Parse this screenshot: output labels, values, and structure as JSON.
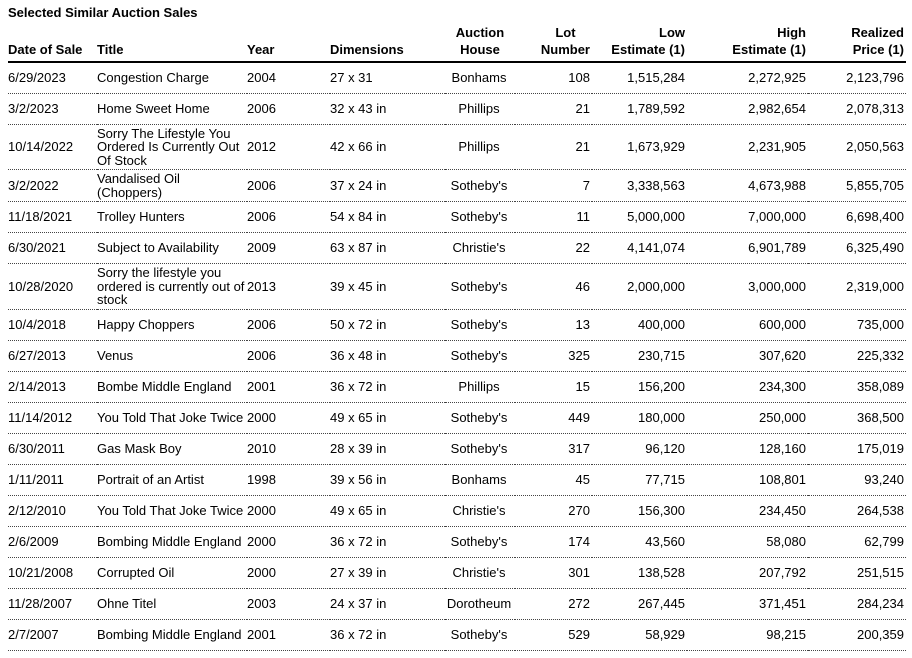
{
  "document": {
    "title": "Selected Similar Auction Sales"
  },
  "table": {
    "columns": [
      {
        "id": "date_of_sale",
        "label": "Date of Sale"
      },
      {
        "id": "title",
        "label": "Title"
      },
      {
        "id": "year",
        "label": "Year"
      },
      {
        "id": "dimensions",
        "label": "Dimensions"
      },
      {
        "id": "auction_house",
        "label": "Auction\nHouse"
      },
      {
        "id": "lot_number",
        "label": "Lot\nNumber"
      },
      {
        "id": "low_estimate",
        "label": "Low\nEstimate (1)"
      },
      {
        "id": "high_estimate",
        "label": "High\nEstimate (1)"
      },
      {
        "id": "realized_price",
        "label": "Realized\nPrice (1)"
      }
    ],
    "rows": [
      {
        "date_of_sale": "6/29/2023",
        "title": "Congestion Charge",
        "year": "2004",
        "dimensions": "27 x 31",
        "auction_house": "Bonhams",
        "lot_number": "108",
        "low_estimate": "1,515,284",
        "high_estimate": "2,272,925",
        "realized_price": "2,123,796"
      },
      {
        "date_of_sale": "3/2/2023",
        "title": "Home Sweet Home",
        "year": "2006",
        "dimensions": "32 x 43 in",
        "auction_house": "Phillips",
        "lot_number": "21",
        "low_estimate": "1,789,592",
        "high_estimate": "2,982,654",
        "realized_price": "2,078,313"
      },
      {
        "date_of_sale": "10/14/2022",
        "title": "Sorry The Lifestyle You Ordered Is Currently Out Of Stock",
        "year": "2012",
        "dimensions": "42 x 66 in",
        "auction_house": "Phillips",
        "lot_number": "21",
        "low_estimate": "1,673,929",
        "high_estimate": "2,231,905",
        "realized_price": "2,050,563"
      },
      {
        "date_of_sale": "3/2/2022",
        "title": "Vandalised Oil (Choppers)",
        "year": "2006",
        "dimensions": "37 x 24 in",
        "auction_house": "Sotheby's",
        "lot_number": "7",
        "low_estimate": "3,338,563",
        "high_estimate": "4,673,988",
        "realized_price": "5,855,705"
      },
      {
        "date_of_sale": "11/18/2021",
        "title": "Trolley Hunters",
        "year": "2006",
        "dimensions": "54 x 84 in",
        "auction_house": "Sotheby's",
        "lot_number": "11",
        "low_estimate": "5,000,000",
        "high_estimate": "7,000,000",
        "realized_price": "6,698,400"
      },
      {
        "date_of_sale": "6/30/2021",
        "title": "Subject to Availability",
        "year": "2009",
        "dimensions": "63 x 87 in",
        "auction_house": "Christie's",
        "lot_number": "22",
        "low_estimate": "4,141,074",
        "high_estimate": "6,901,789",
        "realized_price": "6,325,490"
      },
      {
        "date_of_sale": "10/28/2020",
        "title": "Sorry the lifestyle you ordered is currently out of stock",
        "year": "2013",
        "dimensions": "39 x 45 in",
        "auction_house": "Sotheby's",
        "lot_number": "46",
        "low_estimate": "2,000,000",
        "high_estimate": "3,000,000",
        "realized_price": "2,319,000"
      },
      {
        "date_of_sale": "10/4/2018",
        "title": "Happy Choppers",
        "year": "2006",
        "dimensions": "50 x 72 in",
        "auction_house": "Sotheby's",
        "lot_number": "13",
        "low_estimate": "400,000",
        "high_estimate": "600,000",
        "realized_price": "735,000"
      },
      {
        "date_of_sale": "6/27/2013",
        "title": "Venus",
        "year": "2006",
        "dimensions": "36 x 48 in",
        "auction_house": "Sotheby's",
        "lot_number": "325",
        "low_estimate": "230,715",
        "high_estimate": "307,620",
        "realized_price": "225,332"
      },
      {
        "date_of_sale": "2/14/2013",
        "title": "Bombe Middle England",
        "year": "2001",
        "dimensions": "36 x 72 in",
        "auction_house": "Phillips",
        "lot_number": "15",
        "low_estimate": "156,200",
        "high_estimate": "234,300",
        "realized_price": "358,089"
      },
      {
        "date_of_sale": "11/14/2012",
        "title": "You Told That Joke Twice",
        "year": "2000",
        "dimensions": "49 x 65 in",
        "auction_house": "Sotheby's",
        "lot_number": "449",
        "low_estimate": "180,000",
        "high_estimate": "250,000",
        "realized_price": "368,500"
      },
      {
        "date_of_sale": "6/30/2011",
        "title": "Gas Mask Boy",
        "year": "2010",
        "dimensions": "28 x 39 in",
        "auction_house": "Sotheby's",
        "lot_number": "317",
        "low_estimate": "96,120",
        "high_estimate": "128,160",
        "realized_price": "175,019"
      },
      {
        "date_of_sale": "1/11/2011",
        "title": "Portrait of an Artist",
        "year": "1998",
        "dimensions": "39 x 56 in",
        "auction_house": "Bonhams",
        "lot_number": "45",
        "low_estimate": "77,715",
        "high_estimate": "108,801",
        "realized_price": "93,240"
      },
      {
        "date_of_sale": "2/12/2010",
        "title": "You Told That Joke Twice",
        "year": "2000",
        "dimensions": "49 x 65 in",
        "auction_house": "Christie's",
        "lot_number": "270",
        "low_estimate": "156,300",
        "high_estimate": "234,450",
        "realized_price": "264,538"
      },
      {
        "date_of_sale": "2/6/2009",
        "title": "Bombing Middle England",
        "year": "2000",
        "dimensions": "36 x 72 in",
        "auction_house": "Sotheby's",
        "lot_number": "174",
        "low_estimate": "43,560",
        "high_estimate": "58,080",
        "realized_price": "62,799"
      },
      {
        "date_of_sale": "10/21/2008",
        "title": "Corrupted Oil",
        "year": "2000",
        "dimensions": "27 x 39 in",
        "auction_house": "Christie's",
        "lot_number": "301",
        "low_estimate": "138,528",
        "high_estimate": "207,792",
        "realized_price": "251,515"
      },
      {
        "date_of_sale": "11/28/2007",
        "title": "Ohne Titel",
        "year": "2003",
        "dimensions": "24 x 37 in",
        "auction_house": "Dorotheum",
        "lot_number": "272",
        "low_estimate": "267,445",
        "high_estimate": "371,451",
        "realized_price": "284,234"
      },
      {
        "date_of_sale": "2/7/2007",
        "title": "Bombing Middle England",
        "year": "2001",
        "dimensions": "36 x 72 in",
        "auction_house": "Sotheby's",
        "lot_number": "529",
        "low_estimate": "58,929",
        "high_estimate": "98,215",
        "realized_price": "200,359"
      }
    ]
  }
}
